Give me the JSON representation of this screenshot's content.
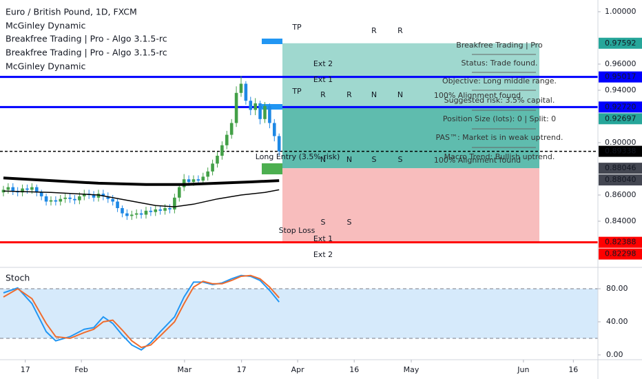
{
  "chart_data": [
    {
      "type": "candlestick",
      "title": "Euro / British Pound, 1D, FXCM",
      "indicators": [
        "Breakfree Trading | Pro - Algo 3.1.5-rc",
        "Breakfree Trading | Pro - Algo 3.1.5-rc"
      ],
      "up_color": "#43a047",
      "down_color": "#1e88e5",
      "open": [
        0.862,
        0.864,
        0.866,
        0.863,
        0.862,
        0.865,
        0.864,
        0.866,
        0.862,
        0.859,
        0.855,
        0.856,
        0.855,
        0.857,
        0.858,
        0.857,
        0.856,
        0.859,
        0.861,
        0.86,
        0.858,
        0.861,
        0.859,
        0.857,
        0.855,
        0.85,
        0.846,
        0.844,
        0.845,
        0.846,
        0.845,
        0.848,
        0.847,
        0.849,
        0.848,
        0.85,
        0.849,
        0.858,
        0.866,
        0.872,
        0.87,
        0.872,
        0.871,
        0.874,
        0.878,
        0.884,
        0.89,
        0.898,
        0.906,
        0.915,
        0.938,
        0.945,
        0.932,
        0.925,
        0.93,
        0.918,
        0.928,
        0.915,
        0.905
      ],
      "high": [
        0.867,
        0.869,
        0.869,
        0.866,
        0.868,
        0.868,
        0.869,
        0.868,
        0.864,
        0.861,
        0.859,
        0.859,
        0.86,
        0.861,
        0.861,
        0.86,
        0.862,
        0.864,
        0.864,
        0.863,
        0.864,
        0.864,
        0.862,
        0.86,
        0.857,
        0.852,
        0.849,
        0.848,
        0.849,
        0.849,
        0.851,
        0.851,
        0.852,
        0.852,
        0.853,
        0.853,
        0.861,
        0.869,
        0.876,
        0.875,
        0.875,
        0.875,
        0.877,
        0.881,
        0.887,
        0.893,
        0.901,
        0.909,
        0.918,
        0.943,
        0.951,
        0.947,
        0.935,
        0.934,
        0.932,
        0.931,
        0.93,
        0.918,
        0.907
      ],
      "low": [
        0.859,
        0.861,
        0.86,
        0.859,
        0.859,
        0.861,
        0.861,
        0.859,
        0.856,
        0.852,
        0.852,
        0.852,
        0.852,
        0.854,
        0.854,
        0.853,
        0.853,
        0.856,
        0.857,
        0.855,
        0.855,
        0.856,
        0.854,
        0.852,
        0.847,
        0.843,
        0.841,
        0.841,
        0.842,
        0.842,
        0.842,
        0.844,
        0.844,
        0.845,
        0.845,
        0.846,
        0.846,
        0.855,
        0.863,
        0.867,
        0.867,
        0.868,
        0.868,
        0.871,
        0.875,
        0.881,
        0.887,
        0.895,
        0.903,
        0.912,
        0.935,
        0.929,
        0.921,
        0.921,
        0.914,
        0.915,
        0.911,
        0.901,
        0.89
      ],
      "close": [
        0.864,
        0.866,
        0.863,
        0.862,
        0.865,
        0.864,
        0.866,
        0.862,
        0.859,
        0.855,
        0.856,
        0.855,
        0.857,
        0.858,
        0.857,
        0.856,
        0.859,
        0.861,
        0.86,
        0.858,
        0.861,
        0.859,
        0.857,
        0.855,
        0.85,
        0.846,
        0.844,
        0.845,
        0.846,
        0.845,
        0.848,
        0.847,
        0.849,
        0.848,
        0.85,
        0.849,
        0.858,
        0.866,
        0.872,
        0.87,
        0.872,
        0.871,
        0.874,
        0.878,
        0.884,
        0.89,
        0.898,
        0.906,
        0.915,
        0.938,
        0.945,
        0.932,
        0.925,
        0.93,
        0.918,
        0.928,
        0.915,
        0.905,
        0.89338
      ],
      "series": [
        {
          "name": "McGinley Dynamic",
          "color": "#000000",
          "width": 4,
          "x": [
            0,
            10,
            20,
            30,
            38,
            45,
            52,
            58
          ],
          "values": [
            0.873,
            0.871,
            0.869,
            0.868,
            0.868,
            0.869,
            0.87,
            0.871
          ]
        },
        {
          "name": "McGinley Dynamic",
          "color": "#000000",
          "width": 1.5,
          "x": [
            0,
            10,
            20,
            26,
            32,
            36,
            40,
            45,
            50,
            55,
            58
          ],
          "values": [
            0.863,
            0.862,
            0.86,
            0.856,
            0.852,
            0.851,
            0.853,
            0.857,
            0.86,
            0.862,
            0.864
          ]
        }
      ],
      "zones": [
        {
          "from": 0.97592,
          "to": 0.9272,
          "color": "#9fd8cf"
        },
        {
          "from": 0.9272,
          "to": 0.88046,
          "color": "#5fbcae"
        },
        {
          "from": 0.88046,
          "to": 0.82388,
          "color": "#f8bdbd"
        }
      ],
      "levels": [
        {
          "value": 0.95017,
          "color": "#0000ff"
        },
        {
          "value": 0.9272,
          "color": "#0000ff"
        },
        {
          "value": 0.82388,
          "color": "#ff0000"
        },
        {
          "value": 0.89338,
          "color": "#000000",
          "style": "dashed"
        }
      ],
      "price_labels": [
        {
          "value": 0.97592,
          "color": "#26a69a"
        },
        {
          "value": 0.95017,
          "color": "#0000ff"
        },
        {
          "value": 0.9272,
          "label": "0.92720",
          "color": "#0000ff"
        },
        {
          "value": 0.92697,
          "color": "#26a69a"
        },
        {
          "value": 0.89338,
          "color": "#000000"
        },
        {
          "value": 0.88046,
          "color": "#434651"
        },
        {
          "value": 0.8804,
          "label": "0.88040",
          "color": "#434651"
        },
        {
          "value": 0.82388,
          "color": "#ff0000"
        },
        {
          "value": 0.82298,
          "color": "#ff0000"
        }
      ],
      "annotations": [
        "TP",
        "R",
        "R",
        "Ext 2",
        "Ext 1",
        "TP",
        "R",
        "R",
        "N",
        "N",
        "Long Entry (3.5% risk)",
        "N",
        "N",
        "S",
        "S",
        "Stop Loss",
        "S",
        "S",
        "Ext 1",
        "Ext 2"
      ],
      "info_panel": [
        "Breakfree Trading | Pro",
        "Status: Trade found.",
        "Objective: Long middle range.",
        "100% Alignment found",
        "Suggested risk: 3.5% capital.",
        "Position Size (lots): 0 | Split: 0",
        "PAS™: Market is in weak uptrend.",
        "Macro Trend: Bullish uptrend.",
        "100% Alignment found"
      ],
      "xlim": [
        -0.72,
        125.07
      ],
      "xticks": [
        {
          "value": 4.6,
          "label": "17"
        },
        {
          "value": 16.4,
          "label": "Feb"
        },
        {
          "value": 38.1,
          "label": "Mar"
        },
        {
          "value": 50.1,
          "label": "17"
        },
        {
          "value": 61.9,
          "label": "Apr"
        },
        {
          "value": 73.8,
          "label": "16"
        },
        {
          "value": 85.8,
          "label": "May"
        },
        {
          "value": 109.4,
          "label": "Jun"
        },
        {
          "value": 119.9,
          "label": "16"
        }
      ],
      "ylim": [
        0.80632,
        1.00895
      ],
      "yticks": [
        {
          "value": 1,
          "label": "1.00000"
        },
        {
          "value": 0.96,
          "label": "0.96000"
        },
        {
          "value": 0.94,
          "label": "0.94000"
        },
        {
          "value": 0.9,
          "label": "0.90000"
        },
        {
          "value": 0.86,
          "label": "0.86000"
        },
        {
          "value": 0.84,
          "label": "0.84000"
        }
      ]
    },
    {
      "type": "line",
      "title": "Stoch",
      "x": [
        0,
        3,
        6,
        9,
        11,
        14,
        17,
        19,
        21,
        23,
        25,
        27,
        29,
        31,
        33,
        36,
        38,
        40,
        42,
        44,
        46,
        48,
        50,
        52,
        54,
        56,
        58
      ],
      "series": [
        {
          "color": "#2196f3",
          "values": [
            75,
            81,
            62,
            28,
            17,
            22,
            31,
            33,
            46,
            38,
            24,
            12,
            6,
            15,
            28,
            46,
            70,
            88,
            88,
            85,
            87,
            92,
            96,
            95,
            90,
            78,
            64
          ]
        },
        {
          "color": "#ef6c2e",
          "values": [
            70,
            80,
            68,
            38,
            22,
            20,
            27,
            31,
            40,
            42,
            30,
            17,
            9,
            12,
            23,
            40,
            62,
            82,
            89,
            86,
            86,
            90,
            95,
            96,
            92,
            82,
            69
          ]
        }
      ],
      "band": [
        20,
        80
      ],
      "band_color": "#d6eafb",
      "xlim": [
        -0.72,
        125.07
      ],
      "ylim": [
        -4.17,
        100
      ],
      "yticks": [
        {
          "value": 80,
          "label": "80.00"
        },
        {
          "value": 40,
          "label": "40.00"
        },
        {
          "value": 0,
          "label": "0.00"
        }
      ]
    }
  ]
}
